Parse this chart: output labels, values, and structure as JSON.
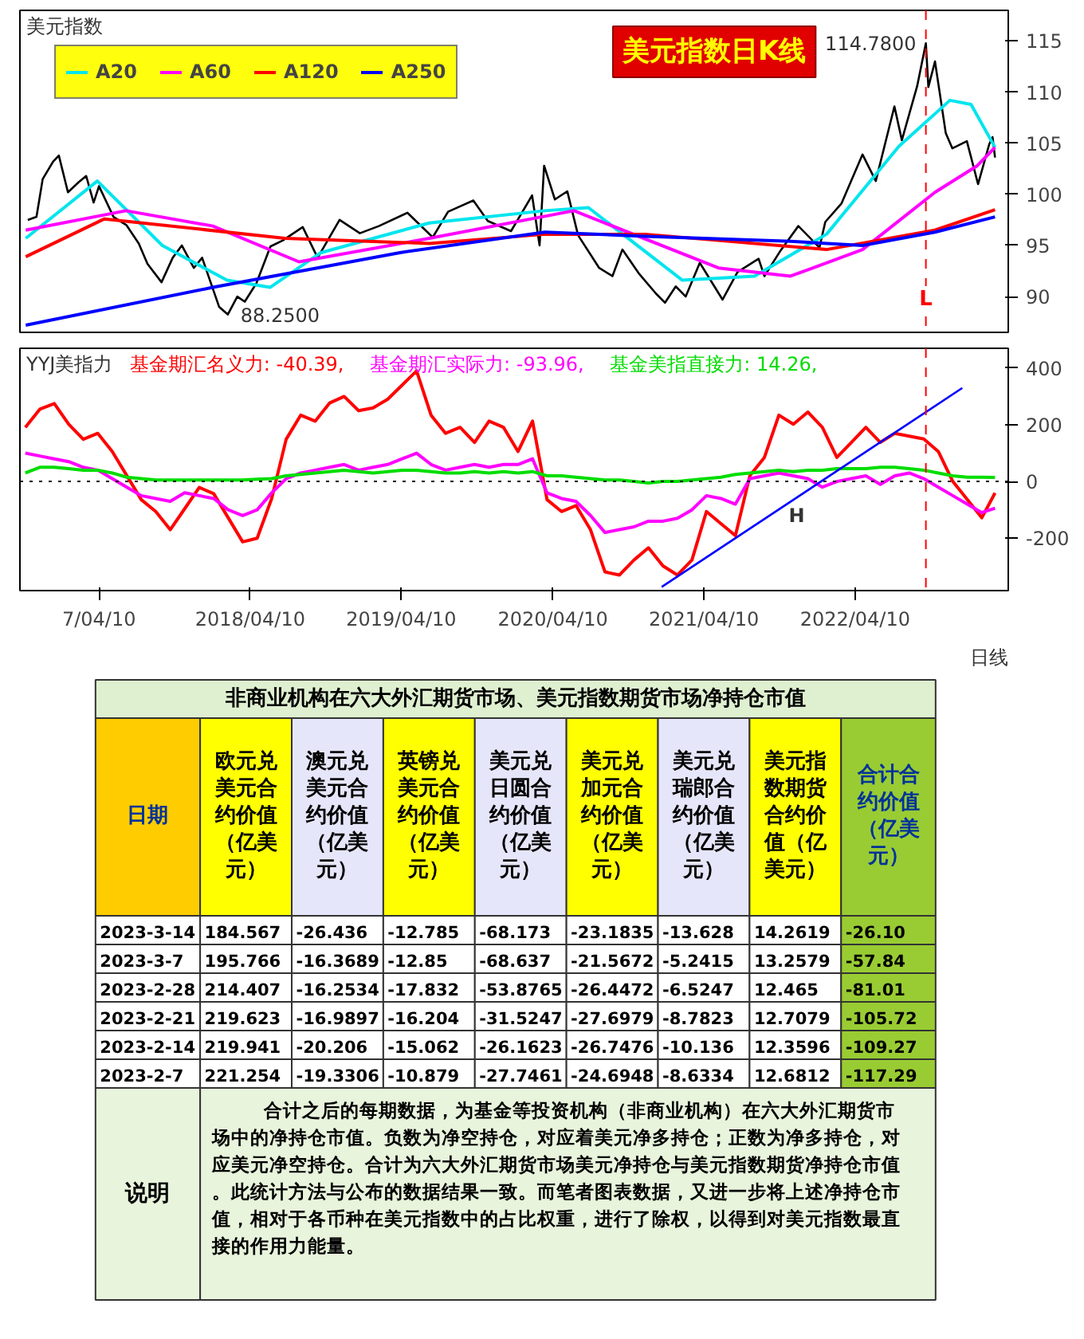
{
  "chart_data": [
    {
      "type": "line",
      "title": "美元指数",
      "legend": "top left",
      "grid": false,
      "tick_labels": "y",
      "xlim": [
        "2016-10-01",
        "2023-04-15"
      ],
      "ylim": [
        86.5,
        118
      ],
      "yticks": [
        90,
        95,
        100,
        105,
        110,
        115
      ],
      "x": [
        "2016-10-20",
        "2016-11-10",
        "2016-11-25",
        "2016-12-20",
        "2017-01-03",
        "2017-01-25",
        "2017-02-20",
        "2017-03-10",
        "2017-03-28",
        "2017-04-10",
        "2017-05-15",
        "2017-06-15",
        "2017-07-15",
        "2017-08-05",
        "2017-09-08",
        "2017-10-05",
        "2017-10-27",
        "2017-11-25",
        "2017-12-15",
        "2018-01-25",
        "2018-02-15",
        "2018-03-10",
        "2018-03-28",
        "2018-04-25",
        "2018-05-29",
        "2018-06-28",
        "2018-08-15",
        "2018-09-20",
        "2018-11-12",
        "2018-12-31",
        "2019-02-15",
        "2019-04-25",
        "2019-06-25",
        "2019-08-01",
        "2019-10-01",
        "2019-11-05",
        "2019-12-31",
        "2020-02-20",
        "2020-03-09",
        "2020-03-20",
        "2020-04-15",
        "2020-05-15",
        "2020-06-10",
        "2020-07-31",
        "2020-09-01",
        "2020-09-25",
        "2020-11-05",
        "2020-12-15",
        "2021-01-06",
        "2021-02-01",
        "2021-02-25",
        "2021-03-31",
        "2021-05-25",
        "2021-06-30",
        "2021-08-20",
        "2021-09-03",
        "2021-10-12",
        "2021-11-24",
        "2022-01-14",
        "2022-01-28",
        "2022-03-08",
        "2022-04-28",
        "2022-05-30",
        "2022-07-14",
        "2022-08-01",
        "2022-09-07",
        "2022-09-28",
        "2022-10-04",
        "2022-10-20",
        "2022-11-15",
        "2022-12-01",
        "2023-01-05",
        "2023-02-01",
        "2023-02-28",
        "2023-03-08",
        "2023-03-14"
      ],
      "series": [
        {
          "color": "#000000",
          "values": [
            97.5,
            97.8,
            101.5,
            103.2,
            103.8,
            100.2,
            101.2,
            101.8,
            99.2,
            100.8,
            97.8,
            97.0,
            95.2,
            93.2,
            91.4,
            93.8,
            95.0,
            92.8,
            93.8,
            89.0,
            88.25,
            90.0,
            89.5,
            91.3,
            94.9,
            95.5,
            96.8,
            93.8,
            97.5,
            96.2,
            96.9,
            98.2,
            95.8,
            98.3,
            99.4,
            97.4,
            96.4,
            99.9,
            95.0,
            102.8,
            99.5,
            100.3,
            96.0,
            92.8,
            92.0,
            94.6,
            92.2,
            90.3,
            89.4,
            91.0,
            90.0,
            93.3,
            89.7,
            92.4,
            93.7,
            92.0,
            94.5,
            96.9,
            94.8,
            97.3,
            99.1,
            103.9,
            101.3,
            108.6,
            105.3,
            110.6,
            114.78,
            110.5,
            113.0,
            106.0,
            104.5,
            105.2,
            101.0,
            104.9,
            105.6,
            103.6
          ]
        },
        {
          "name": "A20",
          "color": "#00e5ee",
          "x": [
            "2016-10-15",
            "2017-04-06",
            "2017-09-10",
            "2018-02-13",
            "2018-05-28",
            "2018-09-28",
            "2019-06-17",
            "2020-03-22",
            "2020-07-05",
            "2021-02-17",
            "2021-08-10",
            "2022-01-31",
            "2022-07-25",
            "2022-11-25",
            "2023-01-15",
            "2023-03-14"
          ],
          "values": [
            95.7,
            101.3,
            95.0,
            91.6,
            90.9,
            94.3,
            97.2,
            98.4,
            98.7,
            91.6,
            92.0,
            96.1,
            104.7,
            109.2,
            108.8,
            104.6
          ]
        },
        {
          "name": "A60",
          "color": "#ff00ff",
          "x": [
            "2016-10-15",
            "2017-06-14",
            "2018-01-10",
            "2018-08-06",
            "2019-06-17",
            "2020-05-31",
            "2021-05-15",
            "2021-11-05",
            "2022-04-28",
            "2022-10-20",
            "2023-01-30",
            "2023-03-14"
          ],
          "values": [
            96.5,
            98.4,
            96.9,
            93.4,
            95.7,
            98.4,
            92.8,
            92.0,
            94.6,
            100.2,
            102.8,
            104.6
          ]
        },
        {
          "name": "A120",
          "color": "#ff0000",
          "x": [
            "2016-10-15",
            "2017-04-23",
            "2018-07-03",
            "2019-06-17",
            "2020-03-22",
            "2020-11-19",
            "2022-01-31",
            "2022-10-20",
            "2023-03-14"
          ],
          "values": [
            93.9,
            97.6,
            95.7,
            95.2,
            96.1,
            96.1,
            94.6,
            96.5,
            98.5
          ]
        },
        {
          "name": "A250",
          "color": "#0000ff",
          "x": [
            "2016-10-15",
            "2018-01-10",
            "2019-04-07",
            "2020-03-22",
            "2020-11-19",
            "2021-11-05",
            "2022-04-28",
            "2022-10-20",
            "2023-03-14"
          ],
          "values": [
            87.2,
            90.9,
            94.3,
            96.3,
            95.9,
            95.4,
            95.0,
            96.3,
            97.8
          ]
        }
      ],
      "ref_lines": [
        {
          "axis": "x",
          "value": "2022-09-28",
          "label": "L",
          "color": "#ff0000",
          "line_style": "dashed"
        }
      ],
      "annotations": [
        "美元指数日K线",
        {
          "text": "114.7800",
          "x": "2022-09-28",
          "y": 114.78
        },
        {
          "text": "88.2500",
          "x": "2018-02-15",
          "y": 88.25
        }
      ]
    },
    {
      "type": "line",
      "title": "YYJ美指力",
      "grid": false,
      "xlim": [
        "2016-10-01",
        "2023-04-15"
      ],
      "xticks": [
        {
          "value": "2017-04-10",
          "label": "7/04/10"
        },
        {
          "value": "2018-04-10",
          "label": "2018/04/10"
        },
        {
          "value": "2019-04-10",
          "label": "2019/04/10"
        },
        {
          "value": "2020-04-10",
          "label": "2020/04/10"
        },
        {
          "value": "2021-04-10",
          "label": "2021/04/10"
        },
        {
          "value": "2022-04-10",
          "label": "2022/04/10"
        }
      ],
      "ylim": [
        -385,
        470
      ],
      "yticks": [
        -200,
        0,
        200,
        400
      ],
      "x": [
        "2016-10-14",
        "2016-11-18",
        "2016-12-23",
        "2017-01-27",
        "2017-03-03",
        "2017-04-07",
        "2017-05-12",
        "2017-06-16",
        "2017-07-21",
        "2017-08-25",
        "2017-09-29",
        "2017-11-03",
        "2017-12-08",
        "2018-01-12",
        "2018-02-16",
        "2018-03-23",
        "2018-04-27",
        "2018-06-01",
        "2018-07-06",
        "2018-08-10",
        "2018-09-14",
        "2018-10-19",
        "2018-11-23",
        "2018-12-28",
        "2019-02-01",
        "2019-03-08",
        "2019-04-12",
        "2019-05-17",
        "2019-06-21",
        "2019-07-26",
        "2019-08-30",
        "2019-10-04",
        "2019-11-08",
        "2019-12-13",
        "2020-01-17",
        "2020-02-21",
        "2020-03-27",
        "2020-05-01",
        "2020-06-05",
        "2020-07-10",
        "2020-08-14",
        "2020-09-18",
        "2020-10-23",
        "2020-11-27",
        "2021-01-01",
        "2021-02-05",
        "2021-03-12",
        "2021-04-16",
        "2021-05-21",
        "2021-06-25",
        "2021-07-30",
        "2021-09-03",
        "2021-10-08",
        "2021-11-12",
        "2021-12-17",
        "2022-01-21",
        "2022-02-25",
        "2022-04-01",
        "2022-05-06",
        "2022-06-10",
        "2022-07-15",
        "2022-08-19",
        "2022-09-23",
        "2022-10-28",
        "2022-12-02",
        "2023-01-06",
        "2023-02-10",
        "2023-03-14"
      ],
      "series": [
        {
          "name": "基金期汇名义力: -40.39,",
          "color": "#ff0000",
          "values": [
            191,
            255,
            275,
            202,
            149,
            170,
            106,
            21,
            -64,
            -106,
            -170,
            -96,
            -21,
            -43,
            -128,
            -213,
            -200,
            -60,
            149,
            234,
            213,
            277,
            300,
            250,
            260,
            290,
            340,
            390,
            234,
            170,
            191,
            138,
            213,
            191,
            106,
            213,
            -64,
            -106,
            -85,
            -170,
            -319,
            -330,
            -277,
            -234,
            -298,
            -330,
            -277,
            -106,
            -149,
            -191,
            21,
            85,
            234,
            202,
            245,
            191,
            85,
            138,
            191,
            138,
            170,
            160,
            150,
            106,
            0,
            -64,
            -128,
            -40.39
          ]
        },
        {
          "name": "基金期汇实际力: -93.96,",
          "color": "#ff00ff",
          "values": [
            100,
            90,
            80,
            70,
            50,
            40,
            10,
            -20,
            -50,
            -60,
            -70,
            -40,
            -50,
            -60,
            -100,
            -120,
            -100,
            -40,
            10,
            30,
            40,
            50,
            60,
            40,
            50,
            60,
            80,
            100,
            60,
            40,
            50,
            60,
            50,
            60,
            60,
            80,
            -40,
            -60,
            -70,
            -120,
            -180,
            -170,
            -160,
            -140,
            -140,
            -130,
            -100,
            -50,
            -60,
            -80,
            10,
            20,
            30,
            20,
            10,
            -20,
            0,
            10,
            20,
            -10,
            20,
            30,
            10,
            -20,
            -50,
            -80,
            -110,
            -93.96
          ]
        },
        {
          "name": "基金美指直接力: 14.26,",
          "color": "#00dd00",
          "values": [
            30,
            50,
            50,
            45,
            40,
            40,
            30,
            15,
            10,
            5,
            5,
            5,
            5,
            5,
            5,
            5,
            8,
            10,
            20,
            25,
            30,
            35,
            40,
            35,
            30,
            35,
            40,
            40,
            35,
            30,
            30,
            35,
            30,
            35,
            30,
            35,
            20,
            20,
            15,
            10,
            5,
            5,
            0,
            -5,
            0,
            0,
            5,
            10,
            15,
            25,
            30,
            35,
            40,
            35,
            40,
            40,
            45,
            45,
            45,
            50,
            50,
            45,
            40,
            30,
            20,
            15,
            15,
            14.26
          ]
        },
        {
          "color": "#0000ff",
          "x": [
            "2020-12-29",
            "2022-12-25"
          ],
          "values": [
            -372,
            330
          ]
        }
      ],
      "ref_lines": [
        {
          "axis": "x",
          "value": "2022-09-28",
          "color": "#ff0000",
          "line_style": "dashed"
        },
        {
          "axis": "y",
          "value": 0,
          "color": "#000000",
          "line_style": "dotted"
        }
      ],
      "annotations": [
        {
          "text": "H",
          "x": "2021-10-01",
          "y": -121
        },
        "日线"
      ]
    },
    {
      "type": "other",
      "title": "非商业机构在六大外汇期货市场、美元指数期货市场净持仓市值",
      "annotations": [
        "日期",
        "欧元兑美元合约价值（亿美元）",
        "澳元兑美元合约价值（亿美元）",
        "英镑兑美元合约价值（亿美元）",
        "美元兑日圆合约价值（亿美元）",
        "美元兑加元合约价值（亿美元）",
        "美元兑瑞郎合约价值（亿美元）",
        "美元指数期货合约价值（亿美元）",
        "合计合约价值（亿美元）",
        "2023-3-14",
        "184.567",
        "-26.436",
        "-12.785",
        "-68.173",
        "-23.1835",
        "-13.628",
        "14.2619",
        "-26.10",
        "2023-3-7",
        "195.766",
        "-16.3689",
        "-12.85",
        "-68.637",
        "-21.5672",
        "-5.2415",
        "13.2579",
        "-57.84",
        "2023-2-28",
        "214.407",
        "-16.2534",
        "-17.832",
        "-53.8765",
        "-26.4472",
        "-6.5247",
        "12.465",
        "-81.01",
        "2023-2-21",
        "219.623",
        "-16.9897",
        "-16.204",
        "-31.5247",
        "-27.6979",
        "-8.7823",
        "12.7079",
        "-105.72",
        "2023-2-14",
        "219.941",
        "-20.206",
        "-15.062",
        "-26.1623",
        "-26.7476",
        "-10.136",
        "12.3596",
        "-109.27",
        "2023-2-7",
        "221.254",
        "-19.3306",
        "-10.879",
        "-27.7461",
        "-24.6948",
        "-8.6334",
        "12.6812",
        "-117.29",
        "说明",
        "合计之后的每期数据，为基金等投资机构（非商业机构）在六大外汇期货市场中的净持仓市值。负数为净空持仓，对应着美元净多持仓；正数为净多持仓，对应美元净空持仓。合计为六大外汇期货市场美元净持仓与美元指数期货净持仓市值。此统计方法与公布的数据结果一致。而笔者图表数据，又进一步将上述净持仓市值，相对于各币种在美元指数中的占比权重，进行了除权，以得到对美元指数最直接的作用力能量。"
      ]
    }
  ]
}
